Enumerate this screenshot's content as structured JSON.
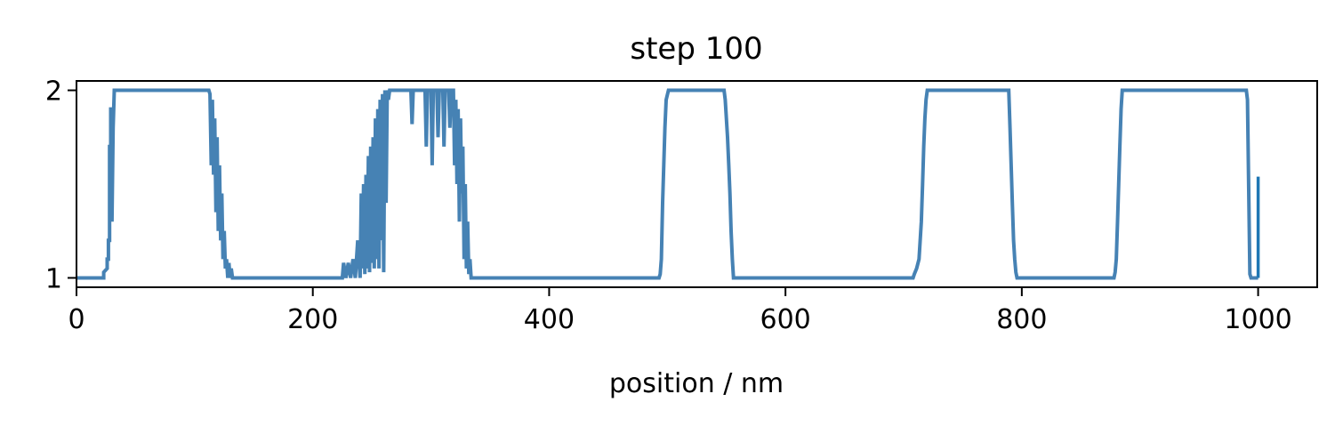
{
  "chart_data": {
    "type": "line",
    "title": "step 100",
    "xlabel": "position / nm",
    "ylabel": "",
    "xlim": [
      0,
      1050
    ],
    "ylim": [
      0.95,
      2.05
    ],
    "x_ticks": [
      0,
      200,
      400,
      600,
      800,
      1000
    ],
    "x_tick_labels": [
      "0",
      "200",
      "400",
      "600",
      "800",
      "1000"
    ],
    "y_ticks": [
      1,
      2
    ],
    "y_tick_labels": [
      "1",
      "2"
    ],
    "grid": false,
    "legend": "none",
    "colors": {
      "line": "#4682b4",
      "tail": "#1f77b4"
    },
    "series": [
      {
        "values": [
          [
            0,
            1
          ],
          [
            23,
            1
          ],
          [
            23,
            1.03
          ],
          [
            26,
            1.05
          ],
          [
            26,
            1.1
          ],
          [
            27,
            1.1
          ],
          [
            27,
            1.2
          ],
          [
            28,
            1.2
          ],
          [
            28,
            1.7
          ],
          [
            29,
            1.7
          ],
          [
            29,
            1.9
          ],
          [
            30,
            1.9
          ],
          [
            30,
            1.3
          ],
          [
            31,
            1.8
          ],
          [
            32,
            2
          ],
          [
            112,
            2
          ],
          [
            113,
            1.98
          ],
          [
            114,
            1.6
          ],
          [
            115,
            1.95
          ],
          [
            116,
            1.55
          ],
          [
            117,
            1.85
          ],
          [
            118,
            1.35
          ],
          [
            119,
            1.75
          ],
          [
            120,
            1.25
          ],
          [
            121,
            1.6
          ],
          [
            122,
            1.2
          ],
          [
            123,
            1.45
          ],
          [
            124,
            1.1
          ],
          [
            125,
            1.25
          ],
          [
            126,
            1.05
          ],
          [
            127,
            1.1
          ],
          [
            128,
            1
          ],
          [
            129,
            1.08
          ],
          [
            130,
            1
          ],
          [
            131,
            1.05
          ],
          [
            132,
            1
          ],
          [
            225,
            1
          ],
          [
            226,
            1.08
          ],
          [
            228,
            1
          ],
          [
            230,
            1.08
          ],
          [
            232,
            1
          ],
          [
            234,
            1.1
          ],
          [
            236,
            1
          ],
          [
            238,
            1.2
          ],
          [
            240,
            1
          ],
          [
            241,
            1.45
          ],
          [
            242,
            1.05
          ],
          [
            243,
            1.5
          ],
          [
            244,
            1.02
          ],
          [
            245,
            1.55
          ],
          [
            246,
            1.05
          ],
          [
            247,
            1.65
          ],
          [
            248,
            1.03
          ],
          [
            249,
            1.7
          ],
          [
            250,
            1.08
          ],
          [
            251,
            1.75
          ],
          [
            252,
            1.05
          ],
          [
            253,
            1.85
          ],
          [
            254,
            1.1
          ],
          [
            255,
            1.9
          ],
          [
            256,
            1.05
          ],
          [
            257,
            1.95
          ],
          [
            258,
            1.2
          ],
          [
            259,
            1.98
          ],
          [
            260,
            1.03
          ],
          [
            261,
            2
          ],
          [
            262,
            1.4
          ],
          [
            263,
            2
          ],
          [
            264,
            1.95
          ],
          [
            265,
            2
          ],
          [
            283,
            2
          ],
          [
            284,
            1.82
          ],
          [
            285,
            2
          ],
          [
            295,
            2
          ],
          [
            296,
            1.7
          ],
          [
            297,
            2
          ],
          [
            300,
            2
          ],
          [
            301,
            1.6
          ],
          [
            302,
            2
          ],
          [
            305,
            2
          ],
          [
            306,
            1.75
          ],
          [
            307,
            2
          ],
          [
            310,
            2
          ],
          [
            311,
            1.7
          ],
          [
            312,
            2
          ],
          [
            315,
            2
          ],
          [
            316,
            1.8
          ],
          [
            317,
            2
          ],
          [
            319,
            2
          ],
          [
            320,
            1.6
          ],
          [
            321,
            1.95
          ],
          [
            322,
            1.5
          ],
          [
            323,
            1.9
          ],
          [
            324,
            1.3
          ],
          [
            325,
            1.85
          ],
          [
            326,
            1.45
          ],
          [
            327,
            1.7
          ],
          [
            328,
            1.1
          ],
          [
            329,
            1.5
          ],
          [
            330,
            1.05
          ],
          [
            331,
            1.3
          ],
          [
            332,
            1.02
          ],
          [
            333,
            1.1
          ],
          [
            334,
            1
          ],
          [
            493,
            1
          ],
          [
            494,
            1.02
          ],
          [
            495,
            1.1
          ],
          [
            496,
            1.4
          ],
          [
            497,
            1.6
          ],
          [
            498,
            1.8
          ],
          [
            499,
            1.95
          ],
          [
            501,
            2
          ],
          [
            548,
            2
          ],
          [
            549,
            1.95
          ],
          [
            550,
            1.85
          ],
          [
            551,
            1.75
          ],
          [
            552,
            1.6
          ],
          [
            553,
            1.45
          ],
          [
            554,
            1.25
          ],
          [
            555,
            1.1
          ],
          [
            556,
            1
          ],
          [
            708,
            1
          ],
          [
            709,
            1.02
          ],
          [
            711,
            1.05
          ],
          [
            713,
            1.1
          ],
          [
            715,
            1.3
          ],
          [
            716,
            1.5
          ],
          [
            717,
            1.7
          ],
          [
            718,
            1.85
          ],
          [
            719,
            1.95
          ],
          [
            720,
            2
          ],
          [
            789,
            2
          ],
          [
            790,
            1.8
          ],
          [
            791,
            1.6
          ],
          [
            792,
            1.4
          ],
          [
            793,
            1.2
          ],
          [
            794,
            1.1
          ],
          [
            795,
            1.03
          ],
          [
            796,
            1
          ],
          [
            878,
            1
          ],
          [
            879,
            1.03
          ],
          [
            880,
            1.1
          ],
          [
            881,
            1.3
          ],
          [
            882,
            1.5
          ],
          [
            883,
            1.7
          ],
          [
            884,
            1.9
          ],
          [
            885,
            2
          ],
          [
            990,
            2
          ],
          [
            991,
            1.95
          ],
          [
            992,
            1.5
          ],
          [
            993,
            1.02
          ],
          [
            994,
            1
          ],
          [
            1000,
            1
          ]
        ]
      },
      {
        "values": [
          [
            1000,
            1
          ],
          [
            1000,
            1.54
          ]
        ]
      }
    ]
  }
}
